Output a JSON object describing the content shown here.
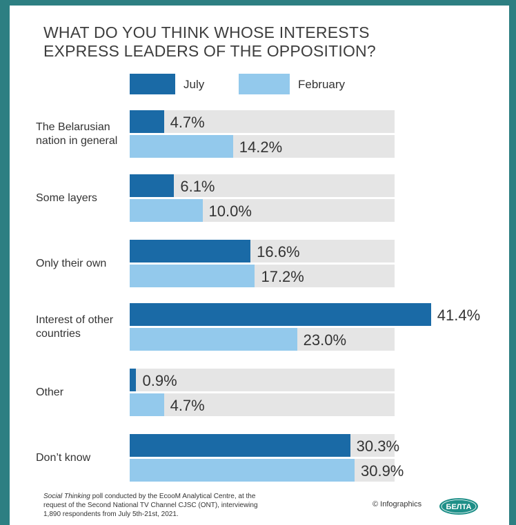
{
  "chart_data": {
    "type": "bar",
    "orientation": "horizontal",
    "title": "WHAT DO YOU THINK WHOSE INTERESTS EXPRESS LEADERS OF THE OPPOSITION?",
    "categories": [
      [
        "The Belarusian",
        "nation in general"
      ],
      [
        "Some layers"
      ],
      [
        "Only their own"
      ],
      [
        "Interest of other",
        "countries"
      ],
      [
        "Other"
      ],
      [
        "Don’t know"
      ]
    ],
    "series": [
      {
        "name": "July",
        "color": "#1a6aa6",
        "values": [
          4.7,
          6.1,
          16.6,
          41.4,
          0.9,
          30.3
        ],
        "labels": [
          "4.7%",
          "6.1%",
          "16.6%",
          "41.4%",
          "0.9%",
          "30.3%"
        ]
      },
      {
        "name": "February",
        "color": "#93c9ec",
        "values": [
          14.2,
          10.0,
          17.2,
          23.0,
          4.7,
          30.9
        ],
        "labels": [
          "14.2%",
          "10.0%",
          "17.2%",
          "23.0%",
          "4.7%",
          "30.9%"
        ]
      }
    ],
    "legend_position": "top",
    "grid": false
  },
  "footnote": {
    "source_name": "Social Thinking",
    "lines": [
      " poll conducted by the EcooM Analytical Centre, at the",
      "request of the Second National TV Channel CJSC (ONT), interviewing",
      "1,890 respondents from July 5th-21st, 2021."
    ]
  },
  "credit": "© Infographics",
  "logo_text": "БЕЛТА",
  "colors": {
    "frame": "#2d7f82",
    "track": "#e5e5e5",
    "logo": "#1e8f88"
  }
}
